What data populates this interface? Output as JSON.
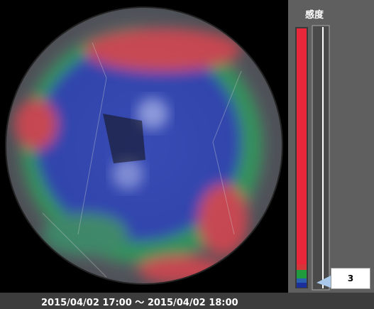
{
  "panel": {
    "title": "感度"
  },
  "slider": {
    "value": "3"
  },
  "footer": {
    "time_range": "2015/04/02 17:00 ～ 2015/04/02 18:00"
  }
}
